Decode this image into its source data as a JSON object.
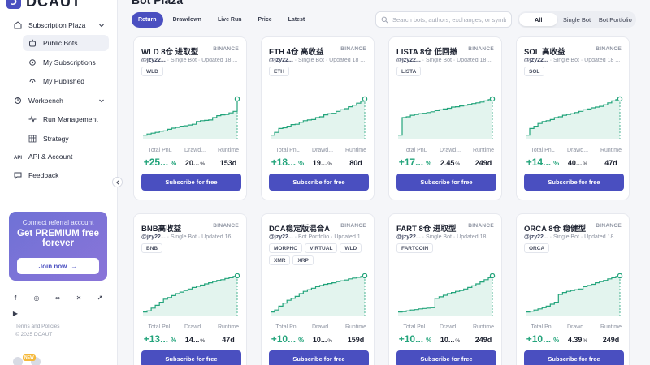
{
  "brand": {
    "name": "DCAUT"
  },
  "sidebar": {
    "subscription_plaza": "Subscription Plaza",
    "public_bots": "Public Bots",
    "my_subscriptions": "My Subscriptions",
    "my_published": "My Published",
    "workbench": "Workbench",
    "run_management": "Run Management",
    "strategy": "Strategy",
    "api_account": "API & Account",
    "feedback": "Feedback",
    "promo": {
      "subtitle": "Connect referral account",
      "title": "Get PREMIUM free forever",
      "button": "Join now"
    },
    "terms": "Terms and Policies",
    "copyright": "© 2025 DCAUT",
    "new_badge": "NEW"
  },
  "main": {
    "title": "Bot Plaza",
    "sort_tabs": [
      "Return",
      "Drawdown",
      "Live Run",
      "Price",
      "Latest"
    ],
    "search_placeholder": "Search bots, authors, exchanges, or symb",
    "filters": [
      "All",
      "Single Bot",
      "Bot Portfolio"
    ],
    "stat_labels": {
      "pnl": "Total PnL",
      "drawdown": "Drawd...",
      "runtime": "Runtime"
    },
    "subscribe_label": "Subscribe for free"
  },
  "colors": {
    "accent": "#4a4fc0",
    "positive": "#23a47b"
  },
  "bots": [
    {
      "title": "WLD 8仓 进取型",
      "exchange": "BINANCE",
      "author": "@jzy22...",
      "meta": "· Single Bot · Updated 18 ...",
      "tags": [
        "WLD"
      ],
      "pnl": "+25...",
      "pnl_unit": "%",
      "drawdown": "20...",
      "dd_unit": "%",
      "runtime": "153d",
      "curve": [
        0.05,
        0.08,
        0.1,
        0.12,
        0.15,
        0.16,
        0.2,
        0.23,
        0.25,
        0.28,
        0.29,
        0.31,
        0.33,
        0.4,
        0.42,
        0.43,
        0.44,
        0.5,
        0.55,
        0.57,
        0.58,
        0.62,
        0.66,
        0.98
      ]
    },
    {
      "title": "ETH 4仓 高收益",
      "exchange": "BINANCE",
      "author": "@jzy22...",
      "meta": "· Single Bot · Updated 18 ...",
      "tags": [
        "ETH"
      ],
      "pnl": "+18...",
      "pnl_unit": "%",
      "drawdown": "19...",
      "dd_unit": "%",
      "runtime": "80d",
      "curve": [
        0.05,
        0.12,
        0.22,
        0.24,
        0.28,
        0.32,
        0.33,
        0.38,
        0.42,
        0.44,
        0.45,
        0.5,
        0.52,
        0.57,
        0.6,
        0.61,
        0.66,
        0.7,
        0.73,
        0.78,
        0.82,
        0.87,
        0.92,
        0.98
      ]
    },
    {
      "title": "LISTA 8仓 低回撤",
      "exchange": "BINANCE",
      "author": "@jzy22...",
      "meta": "· Single Bot · Updated 18 ...",
      "tags": [
        "LISTA"
      ],
      "pnl": "+17...",
      "pnl_unit": "%",
      "drawdown": "2.45",
      "dd_unit": "%",
      "runtime": "249d",
      "curve": [
        0.05,
        0.5,
        0.52,
        0.56,
        0.58,
        0.6,
        0.61,
        0.63,
        0.65,
        0.68,
        0.7,
        0.72,
        0.74,
        0.77,
        0.78,
        0.8,
        0.82,
        0.84,
        0.86,
        0.88,
        0.9,
        0.93,
        0.96,
        0.98
      ]
    },
    {
      "title": "SOL 高收益",
      "exchange": "BINANCE",
      "author": "@jzy22...",
      "meta": "· Single Bot · Updated 18 ...",
      "tags": [
        "SOL"
      ],
      "pnl": "+14...",
      "pnl_unit": "%",
      "drawdown": "40...",
      "dd_unit": "%",
      "runtime": "47d",
      "curve": [
        0.05,
        0.22,
        0.28,
        0.35,
        0.4,
        0.42,
        0.45,
        0.5,
        0.52,
        0.56,
        0.58,
        0.6,
        0.63,
        0.66,
        0.7,
        0.72,
        0.75,
        0.77,
        0.79,
        0.83,
        0.88,
        0.93,
        0.96,
        0.98
      ]
    },
    {
      "title": "BNB高收益",
      "exchange": "BINANCE",
      "author": "@jzy22...",
      "meta": "· Single Bot · Updated 16 ...",
      "tags": [
        "BNB"
      ],
      "pnl": "+13...",
      "pnl_unit": "%",
      "drawdown": "14...",
      "dd_unit": "%",
      "runtime": "47d",
      "curve": [
        0.05,
        0.08,
        0.15,
        0.22,
        0.3,
        0.38,
        0.42,
        0.47,
        0.52,
        0.56,
        0.6,
        0.64,
        0.68,
        0.71,
        0.74,
        0.77,
        0.8,
        0.83,
        0.86,
        0.88,
        0.91,
        0.93,
        0.96,
        0.98
      ]
    },
    {
      "title": "DCA稳定版混合A",
      "exchange": "BINANCE",
      "author": "@jzy22...",
      "meta": "· Bot Portfolio · Updated 1...",
      "tags": [
        "MORPHO",
        "VIRTUAL",
        "WLD",
        "XMR",
        "XRP"
      ],
      "pnl": "+10...",
      "pnl_unit": "%",
      "drawdown": "10...",
      "dd_unit": "%",
      "runtime": "159d",
      "curve": [
        0.05,
        0.1,
        0.2,
        0.28,
        0.35,
        0.4,
        0.45,
        0.52,
        0.58,
        0.62,
        0.66,
        0.7,
        0.73,
        0.76,
        0.78,
        0.8,
        0.83,
        0.85,
        0.87,
        0.9,
        0.92,
        0.94,
        0.96,
        0.98
      ]
    },
    {
      "title": "FART 8仓 进取型",
      "exchange": "BINANCE",
      "author": "@jzy22...",
      "meta": "· Single Bot · Updated 18 ...",
      "tags": [
        "FARTCOIN"
      ],
      "pnl": "+10...",
      "pnl_unit": "%",
      "drawdown": "10...",
      "dd_unit": "%",
      "runtime": "249d",
      "curve": [
        0.05,
        0.06,
        0.08,
        0.1,
        0.11,
        0.13,
        0.14,
        0.15,
        0.16,
        0.4,
        0.44,
        0.48,
        0.52,
        0.55,
        0.58,
        0.6,
        0.64,
        0.68,
        0.72,
        0.77,
        0.82,
        0.88,
        0.93,
        0.98
      ]
    },
    {
      "title": "ORCA 8仓 稳健型",
      "exchange": "BINANCE",
      "author": "@jzy22...",
      "meta": "· Single Bot · Updated 18 ...",
      "tags": [
        "ORCA"
      ],
      "pnl": "+10...",
      "pnl_unit": "%",
      "drawdown": "4.39",
      "dd_unit": "%",
      "runtime": "249d",
      "curve": [
        0.05,
        0.07,
        0.1,
        0.13,
        0.16,
        0.2,
        0.25,
        0.3,
        0.5,
        0.55,
        0.58,
        0.6,
        0.62,
        0.64,
        0.7,
        0.73,
        0.76,
        0.8,
        0.83,
        0.86,
        0.9,
        0.93,
        0.96,
        0.98
      ]
    }
  ]
}
